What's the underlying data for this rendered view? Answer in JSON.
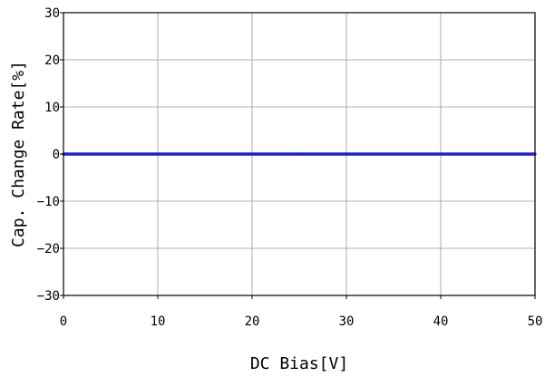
{
  "chart_data": {
    "type": "line",
    "xlabel": "DC Bias[V]",
    "ylabel": "Cap. Change Rate[%]",
    "xlim": [
      0,
      50
    ],
    "ylim": [
      -30,
      30
    ],
    "x_ticks": [
      "0",
      "10",
      "20",
      "30",
      "40",
      "50"
    ],
    "y_ticks": [
      "30",
      "20",
      "10",
      "0",
      "-10",
      "-20",
      "-30"
    ],
    "grid": true,
    "series": [
      {
        "color": "#1f1fd6",
        "x": [
          0,
          5,
          10,
          15,
          20,
          25,
          30,
          35,
          40,
          45,
          50
        ],
        "y": [
          0,
          0,
          0,
          0,
          0,
          0,
          0,
          0,
          0,
          0,
          0
        ]
      }
    ]
  }
}
